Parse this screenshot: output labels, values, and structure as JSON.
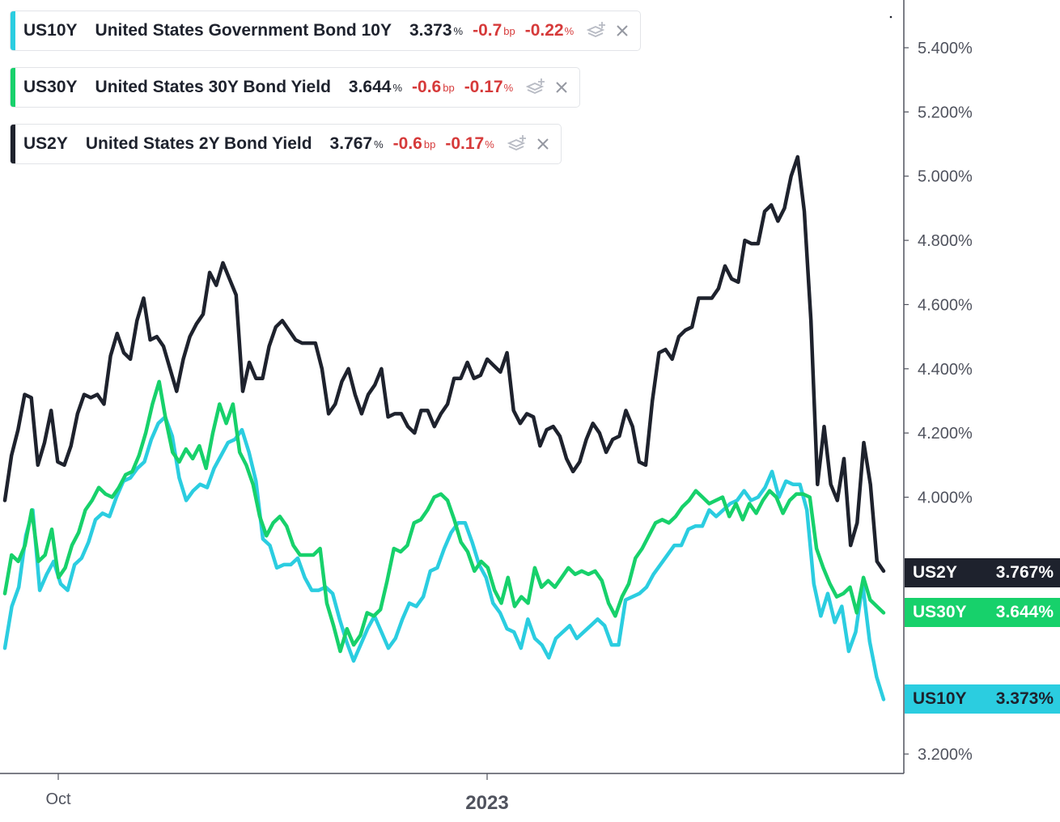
{
  "legend": [
    {
      "symbol": "US10Y",
      "name": "United States Government Bond 10Y",
      "value": "3.373",
      "unit": "%",
      "change_bp": "-0.7",
      "bp_unit": "bp",
      "change_pct": "-0.22",
      "pct_unit": "%",
      "color": "#2bcde0"
    },
    {
      "symbol": "US30Y",
      "name": "United States 30Y Bond Yield",
      "value": "3.644",
      "unit": "%",
      "change_bp": "-0.6",
      "bp_unit": "bp",
      "change_pct": "-0.17",
      "pct_unit": "%",
      "color": "#17d16b"
    },
    {
      "symbol": "US2Y",
      "name": "United States 2Y Bond Yield",
      "value": "3.767",
      "unit": "%",
      "change_bp": "-0.6",
      "bp_unit": "bp",
      "change_pct": "-0.17",
      "pct_unit": "%",
      "color": "#1e222d"
    }
  ],
  "price_tags": [
    {
      "symbol": "US2Y",
      "value": "3.767%",
      "bg": "#1e222d",
      "fg": "#ffffff"
    },
    {
      "symbol": "US30Y",
      "value": "3.644%",
      "bg": "#17d16b",
      "fg": "#ffffff"
    },
    {
      "symbol": "US10Y",
      "value": "3.373%",
      "bg": "#2bcde0",
      "fg": "#1e222d"
    }
  ],
  "chart_data": {
    "type": "line",
    "title": "",
    "xlabel": "",
    "ylabel": "",
    "x_ticks": [
      "Oct",
      "2023"
    ],
    "y_ticks": [
      "3.200%",
      "4.000%",
      "4.200%",
      "4.400%",
      "4.600%",
      "4.800%",
      "5.000%",
      "5.200%",
      "5.400%"
    ],
    "ylim": [
      3.12,
      5.5
    ],
    "grid": false,
    "legend_position": "top-left",
    "series": [
      {
        "name": "US2Y",
        "color": "#1e222d",
        "values": [
          3.99,
          4.13,
          4.21,
          4.32,
          4.31,
          4.1,
          4.17,
          4.27,
          4.11,
          4.1,
          4.16,
          4.26,
          4.32,
          4.31,
          4.32,
          4.29,
          4.44,
          4.51,
          4.45,
          4.43,
          4.55,
          4.62,
          4.49,
          4.5,
          4.47,
          4.4,
          4.33,
          4.43,
          4.5,
          4.54,
          4.57,
          4.7,
          4.66,
          4.73,
          4.68,
          4.63,
          4.33,
          4.42,
          4.37,
          4.37,
          4.47,
          4.53,
          4.55,
          4.52,
          4.49,
          4.48,
          4.48,
          4.48,
          4.4,
          4.26,
          4.29,
          4.36,
          4.4,
          4.32,
          4.26,
          4.32,
          4.35,
          4.4,
          4.25,
          4.26,
          4.26,
          4.22,
          4.2,
          4.27,
          4.27,
          4.22,
          4.26,
          4.29,
          4.37,
          4.37,
          4.42,
          4.37,
          4.38,
          4.43,
          4.41,
          4.39,
          4.45,
          4.27,
          4.23,
          4.26,
          4.25,
          4.16,
          4.21,
          4.22,
          4.19,
          4.12,
          4.08,
          4.11,
          4.18,
          4.23,
          4.2,
          4.14,
          4.18,
          4.19,
          4.27,
          4.22,
          4.11,
          4.1,
          4.3,
          4.45,
          4.46,
          4.43,
          4.5,
          4.52,
          4.53,
          4.62,
          4.62,
          4.62,
          4.65,
          4.72,
          4.68,
          4.67,
          4.8,
          4.79,
          4.79,
          4.89,
          4.91,
          4.86,
          4.9,
          5.0,
          5.06,
          4.89,
          4.55,
          4.04,
          4.22,
          4.04,
          3.99,
          4.12,
          3.85,
          3.92,
          4.17,
          4.04,
          3.8,
          3.77
        ]
      },
      {
        "name": "US30Y",
        "color": "#17d16b",
        "values": [
          3.7,
          3.82,
          3.8,
          3.85,
          3.96,
          3.8,
          3.82,
          3.9,
          3.75,
          3.78,
          3.85,
          3.89,
          3.96,
          3.99,
          4.03,
          4.01,
          4.0,
          4.03,
          4.07,
          4.08,
          4.13,
          4.2,
          4.29,
          4.36,
          4.24,
          4.14,
          4.11,
          4.15,
          4.12,
          4.16,
          4.09,
          4.2,
          4.29,
          4.23,
          4.29,
          4.14,
          4.1,
          4.04,
          3.94,
          3.88,
          3.92,
          3.94,
          3.91,
          3.85,
          3.82,
          3.82,
          3.82,
          3.84,
          3.67,
          3.6,
          3.52,
          3.59,
          3.54,
          3.57,
          3.64,
          3.63,
          3.65,
          3.74,
          3.84,
          3.83,
          3.85,
          3.92,
          3.93,
          3.96,
          4.0,
          4.01,
          3.99,
          3.93,
          3.86,
          3.83,
          3.77,
          3.8,
          3.78,
          3.71,
          3.67,
          3.75,
          3.66,
          3.69,
          3.67,
          3.78,
          3.72,
          3.74,
          3.72,
          3.75,
          3.78,
          3.76,
          3.77,
          3.76,
          3.77,
          3.74,
          3.67,
          3.63,
          3.69,
          3.73,
          3.81,
          3.84,
          3.88,
          3.92,
          3.93,
          3.92,
          3.94,
          3.97,
          3.99,
          4.02,
          4.0,
          3.98,
          3.99,
          4.0,
          3.94,
          3.98,
          3.93,
          3.98,
          3.95,
          3.99,
          4.02,
          4.0,
          3.95,
          3.99,
          4.01,
          4.01,
          4.0,
          3.84,
          3.78,
          3.73,
          3.69,
          3.7,
          3.72,
          3.64,
          3.75,
          3.68,
          3.66,
          3.64
        ]
      },
      {
        "name": "US10Y",
        "color": "#2bcde0",
        "values": [
          3.53,
          3.66,
          3.72,
          3.88,
          3.96,
          3.71,
          3.76,
          3.8,
          3.73,
          3.71,
          3.79,
          3.81,
          3.86,
          3.93,
          3.95,
          3.94,
          4.0,
          4.05,
          4.06,
          4.09,
          4.11,
          4.18,
          4.23,
          4.25,
          4.19,
          4.06,
          3.99,
          4.02,
          4.04,
          4.03,
          4.09,
          4.13,
          4.17,
          4.18,
          4.21,
          4.14,
          4.05,
          3.87,
          3.85,
          3.78,
          3.79,
          3.79,
          3.81,
          3.75,
          3.71,
          3.71,
          3.72,
          3.7,
          3.62,
          3.55,
          3.49,
          3.54,
          3.59,
          3.63,
          3.58,
          3.53,
          3.56,
          3.62,
          3.67,
          3.66,
          3.69,
          3.77,
          3.78,
          3.84,
          3.89,
          3.92,
          3.92,
          3.86,
          3.79,
          3.75,
          3.67,
          3.64,
          3.59,
          3.58,
          3.53,
          3.62,
          3.56,
          3.54,
          3.5,
          3.56,
          3.58,
          3.6,
          3.56,
          3.58,
          3.6,
          3.62,
          3.6,
          3.54,
          3.54,
          3.68,
          3.69,
          3.7,
          3.72,
          3.76,
          3.79,
          3.82,
          3.85,
          3.85,
          3.9,
          3.91,
          3.91,
          3.96,
          3.94,
          3.96,
          3.98,
          3.99,
          4.02,
          3.99,
          4.0,
          4.03,
          4.08,
          4.0,
          4.05,
          4.04,
          4.04,
          3.96,
          3.73,
          3.63,
          3.7,
          3.61,
          3.66,
          3.52,
          3.58,
          3.73,
          3.55,
          3.44,
          3.37
        ]
      }
    ]
  }
}
